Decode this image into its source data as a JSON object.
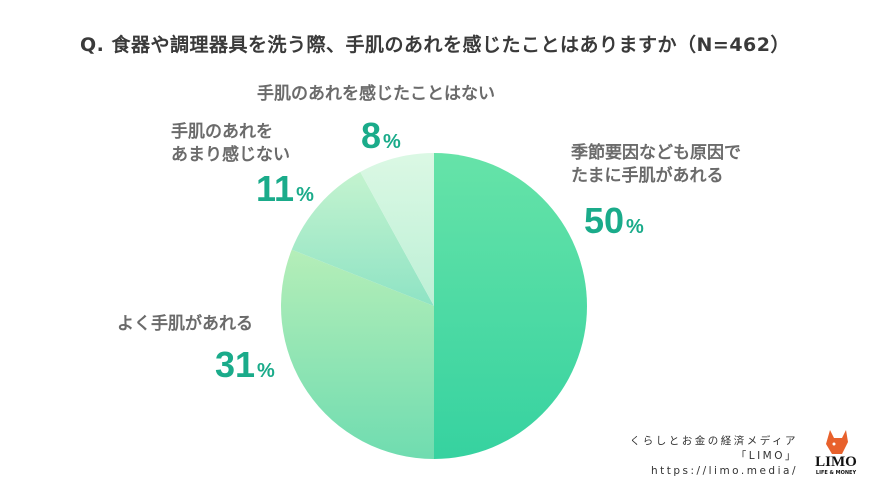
{
  "title": "Q. 食器や調理器具を洗う際、手肌のあれを感じたことはありますか（N=462）",
  "chart_data": {
    "type": "pie",
    "title": "Q. 食器や調理器具を洗う際、手肌のあれを感じたことはありますか（N=462）",
    "categories": [
      "季節要因なども原因でたまに手肌があれる",
      "よく手肌があれる",
      "手肌のあれをあまり感じない",
      "手肌のあれを感じたことはない"
    ],
    "values": [
      50,
      31,
      11,
      8
    ],
    "unit": "%",
    "start_angle": "12 o'clock, clockwise",
    "colors": [
      "#45d9a0",
      "#9de8b8",
      "#b6f0cc",
      "#d6f7e3"
    ]
  },
  "labels": {
    "s1": {
      "line1": "季節要因なども原因で",
      "line2": "たまに手肌があれる",
      "num": "50",
      "sign": "%"
    },
    "s2": {
      "line1": "よく手肌があれる",
      "num": "31",
      "sign": "%"
    },
    "s3": {
      "line1": "手肌のあれを",
      "line2": "あまり感じない",
      "num": "11",
      "sign": "%"
    },
    "s4": {
      "line1": "手肌のあれを感じたことはない",
      "num": "8",
      "sign": "%"
    }
  },
  "credit": {
    "line1": "くらしとお金の経済メディア",
    "line2": "「LIMO」",
    "line3": "https://limo.media/"
  },
  "logo": {
    "name": "LIMO",
    "sub": "LIFE & MONEY"
  }
}
